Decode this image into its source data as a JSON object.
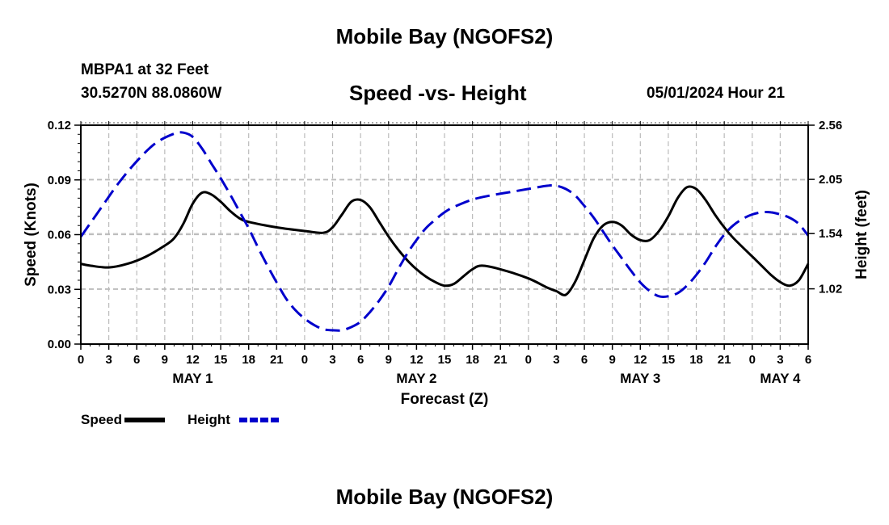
{
  "header": {
    "title": "Mobile Bay (NGOFS2)",
    "station": "MBPA1 at 32 Feet",
    "coordinates": "30.5270N  88.0860W",
    "subtitle": "Speed -vs- Height",
    "datetime": "05/01/2024 Hour 21"
  },
  "footer": {
    "title": "Mobile Bay (NGOFS2)"
  },
  "chart_data": {
    "type": "line",
    "title": "Speed -vs- Height",
    "xlabel": "Forecast (Z)",
    "ylabel_left": "Speed (Knots)",
    "ylabel_right": "Height (feet)",
    "x_range_hours": [
      0,
      78
    ],
    "x_tick_labels": [
      "0",
      "3",
      "6",
      "9",
      "12",
      "15",
      "18",
      "21",
      "0",
      "3",
      "6",
      "9",
      "12",
      "15",
      "18",
      "21",
      "0",
      "3",
      "6",
      "9",
      "12",
      "15",
      "18",
      "21",
      "0",
      "3",
      "6"
    ],
    "date_labels": [
      {
        "label": "MAY 1",
        "hour": 12
      },
      {
        "label": "MAY 2",
        "hour": 36
      },
      {
        "label": "MAY 3",
        "hour": 60
      },
      {
        "label": "MAY 4",
        "hour": 75
      }
    ],
    "y_left_range": [
      0,
      0.12
    ],
    "y_left_ticks": [
      "0.00",
      "0.03",
      "0.06",
      "0.09",
      "0.12"
    ],
    "y_right_range": [
      0.5,
      2.56
    ],
    "y_right_ticks": [
      "1.02",
      "1.54",
      "2.05",
      "2.56"
    ],
    "grid": true,
    "legend_position": "bottom-left",
    "series": [
      {
        "name": "Speed",
        "axis": "left",
        "color": "#000000",
        "style": "solid",
        "points": [
          [
            0,
            0.044
          ],
          [
            1,
            0.043
          ],
          [
            3,
            0.042
          ],
          [
            5,
            0.044
          ],
          [
            7,
            0.048
          ],
          [
            9,
            0.054
          ],
          [
            10,
            0.058
          ],
          [
            11,
            0.066
          ],
          [
            12,
            0.077
          ],
          [
            13,
            0.083
          ],
          [
            14,
            0.082
          ],
          [
            15,
            0.078
          ],
          [
            16,
            0.073
          ],
          [
            17,
            0.069
          ],
          [
            18,
            0.067
          ],
          [
            21,
            0.064
          ],
          [
            24,
            0.062
          ],
          [
            26,
            0.061
          ],
          [
            27,
            0.064
          ],
          [
            28,
            0.071
          ],
          [
            29,
            0.078
          ],
          [
            30,
            0.079
          ],
          [
            31,
            0.075
          ],
          [
            32,
            0.067
          ],
          [
            33,
            0.059
          ],
          [
            34,
            0.052
          ],
          [
            35,
            0.046
          ],
          [
            36,
            0.041
          ],
          [
            37,
            0.037
          ],
          [
            38,
            0.034
          ],
          [
            39,
            0.032
          ],
          [
            40,
            0.033
          ],
          [
            41,
            0.037
          ],
          [
            42,
            0.041
          ],
          [
            43,
            0.043
          ],
          [
            45,
            0.041
          ],
          [
            48,
            0.036
          ],
          [
            50,
            0.031
          ],
          [
            51,
            0.029
          ],
          [
            52,
            0.027
          ],
          [
            53,
            0.034
          ],
          [
            54,
            0.046
          ],
          [
            55,
            0.058
          ],
          [
            56,
            0.065
          ],
          [
            57,
            0.067
          ],
          [
            58,
            0.065
          ],
          [
            59,
            0.06
          ],
          [
            60,
            0.057
          ],
          [
            61,
            0.057
          ],
          [
            62,
            0.062
          ],
          [
            63,
            0.07
          ],
          [
            64,
            0.08
          ],
          [
            65,
            0.086
          ],
          [
            66,
            0.085
          ],
          [
            67,
            0.079
          ],
          [
            68,
            0.071
          ],
          [
            69,
            0.064
          ],
          [
            70,
            0.058
          ],
          [
            72,
            0.048
          ],
          [
            73,
            0.043
          ],
          [
            74,
            0.038
          ],
          [
            75,
            0.034
          ],
          [
            76,
            0.032
          ],
          [
            77,
            0.035
          ],
          [
            78,
            0.044
          ]
        ]
      },
      {
        "name": "Height",
        "axis": "right",
        "color": "#0000cc",
        "style": "dashed",
        "points": [
          [
            0,
            1.51
          ],
          [
            2,
            1.76
          ],
          [
            4,
            2.01
          ],
          [
            6,
            2.22
          ],
          [
            8,
            2.39
          ],
          [
            10,
            2.48
          ],
          [
            11,
            2.49
          ],
          [
            12,
            2.45
          ],
          [
            13,
            2.34
          ],
          [
            14,
            2.2
          ],
          [
            15,
            2.06
          ],
          [
            16,
            1.91
          ],
          [
            17,
            1.75
          ],
          [
            18,
            1.59
          ],
          [
            19,
            1.41
          ],
          [
            20,
            1.24
          ],
          [
            21,
            1.08
          ],
          [
            22,
            0.93
          ],
          [
            23,
            0.82
          ],
          [
            24,
            0.74
          ],
          [
            25,
            0.68
          ],
          [
            26,
            0.64
          ],
          [
            27,
            0.63
          ],
          [
            28,
            0.63
          ],
          [
            29,
            0.66
          ],
          [
            30,
            0.71
          ],
          [
            31,
            0.8
          ],
          [
            32,
            0.91
          ],
          [
            33,
            1.04
          ],
          [
            34,
            1.2
          ],
          [
            35,
            1.35
          ],
          [
            36,
            1.48
          ],
          [
            37,
            1.59
          ],
          [
            38,
            1.67
          ],
          [
            39,
            1.74
          ],
          [
            40,
            1.79
          ],
          [
            42,
            1.86
          ],
          [
            44,
            1.9
          ],
          [
            46,
            1.93
          ],
          [
            48,
            1.96
          ],
          [
            50,
            1.99
          ],
          [
            51,
            1.99
          ],
          [
            52,
            1.96
          ],
          [
            53,
            1.9
          ],
          [
            54,
            1.8
          ],
          [
            55,
            1.69
          ],
          [
            56,
            1.56
          ],
          [
            57,
            1.43
          ],
          [
            58,
            1.31
          ],
          [
            59,
            1.19
          ],
          [
            60,
            1.08
          ],
          [
            61,
            1
          ],
          [
            62,
            0.95
          ],
          [
            63,
            0.95
          ],
          [
            64,
            0.98
          ],
          [
            65,
            1.05
          ],
          [
            66,
            1.15
          ],
          [
            67,
            1.27
          ],
          [
            68,
            1.41
          ],
          [
            69,
            1.53
          ],
          [
            70,
            1.62
          ],
          [
            71,
            1.68
          ],
          [
            72,
            1.72
          ],
          [
            73,
            1.74
          ],
          [
            74,
            1.74
          ],
          [
            75,
            1.72
          ],
          [
            76,
            1.69
          ],
          [
            77,
            1.63
          ],
          [
            78,
            1.52
          ]
        ]
      }
    ]
  }
}
